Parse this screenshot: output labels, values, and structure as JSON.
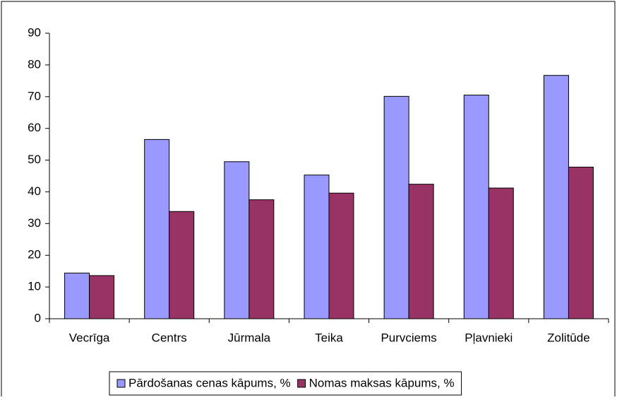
{
  "chart_data": {
    "type": "bar",
    "categories": [
      "Vecrīga",
      "Centrs",
      "Jūrmala",
      "Teika",
      "Purvciems",
      "Pļavnieki",
      "Zolitūde"
    ],
    "series": [
      {
        "name": "Pārdošanas cenas kāpums, %",
        "color": "#9999ff",
        "values": [
          14.4,
          56.5,
          49.5,
          45.3,
          70.1,
          70.5,
          76.7
        ]
      },
      {
        "name": "Nomas maksas kāpums, %",
        "color": "#993366",
        "values": [
          13.6,
          33.8,
          37.5,
          39.6,
          42.4,
          41.2,
          47.8
        ]
      }
    ],
    "ylim": [
      0,
      90
    ],
    "yticks": [
      0,
      10,
      20,
      30,
      40,
      50,
      60,
      70,
      80,
      90
    ],
    "grid": false,
    "legend": "bottom"
  }
}
